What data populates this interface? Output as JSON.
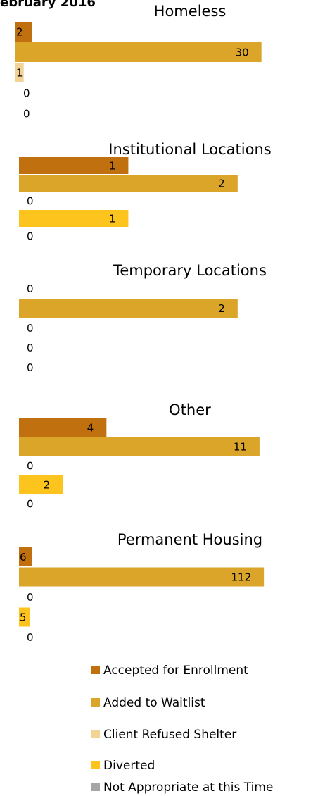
{
  "title": "ebruary 2016",
  "legend": {
    "series": [
      {
        "name": "Accepted for Enrollment",
        "color": "#c0700f"
      },
      {
        "name": "Added to Waitlist",
        "color": "#dba52a"
      },
      {
        "name": "Client Refused Shelter",
        "color": "#f1d396"
      },
      {
        "name": "Diverted",
        "color": "#fcc41c"
      },
      {
        "name": "Not Appropriate at this Time",
        "color": "#a5a5a5"
      }
    ]
  },
  "chart_data": [
    {
      "type": "bar",
      "title": "Homeless",
      "values": [
        2,
        30,
        1,
        0,
        0
      ],
      "xlim": [
        0,
        32
      ]
    },
    {
      "type": "bar",
      "title": "Institutional Locations",
      "values": [
        1,
        2,
        0,
        1,
        0
      ],
      "xlim": [
        0,
        2.4
      ]
    },
    {
      "type": "bar",
      "title": "Temporary Locations",
      "values": [
        0,
        2,
        0,
        0,
        0
      ],
      "xlim": [
        0,
        2.4
      ]
    },
    {
      "type": "bar",
      "title": "Other",
      "values": [
        4,
        11,
        0,
        2,
        0
      ],
      "xlim": [
        0,
        12
      ]
    },
    {
      "type": "bar",
      "title": "Permanent Housing",
      "values": [
        6,
        112,
        0,
        5,
        0
      ],
      "xlim": [
        0,
        120
      ]
    }
  ]
}
